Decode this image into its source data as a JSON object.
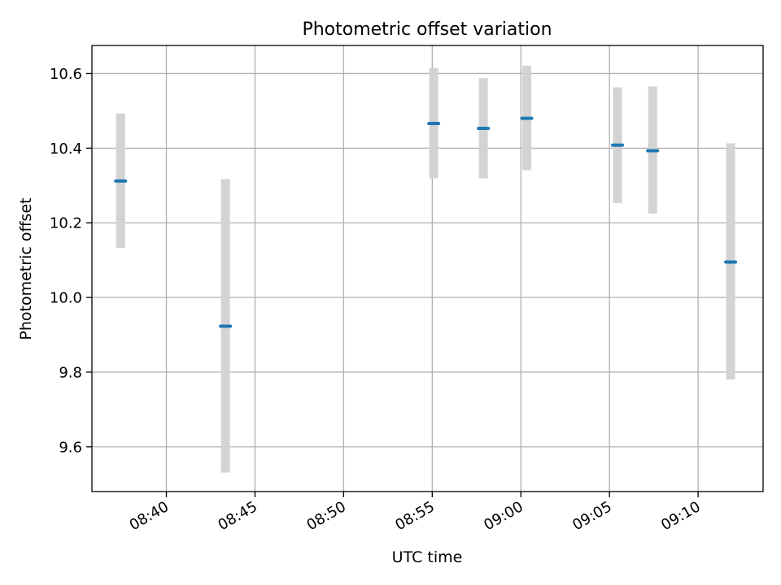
{
  "chart_data": {
    "type": "scatter",
    "title": "Photometric offset variation",
    "xlabel": "UTC time",
    "ylabel": "Photometric offset",
    "x_axis": {
      "type": "time",
      "range": [
        "08:35:48",
        "09:13:40"
      ],
      "ticks": [
        "08:40",
        "08:45",
        "08:50",
        "08:55",
        "09:00",
        "09:05",
        "09:10"
      ]
    },
    "y_axis": {
      "range": [
        9.48,
        10.675
      ],
      "ticks": [
        9.6,
        9.8,
        10.0,
        10.2,
        10.4,
        10.6
      ],
      "tick_labels": [
        "9.6",
        "9.8",
        "10.0",
        "10.2",
        "10.4",
        "10.6"
      ]
    },
    "grid": true,
    "series": [
      {
        "marker_color": "#1f77b4",
        "errorbar_color": "#d3d3d3",
        "points": [
          {
            "x": "08:37:25",
            "y": 10.312,
            "yerr_low": 10.133,
            "yerr_high": 10.493
          },
          {
            "x": "08:43:20",
            "y": 9.923,
            "yerr_low": 9.531,
            "yerr_high": 10.317
          },
          {
            "x": "08:55:05",
            "y": 10.466,
            "yerr_low": 10.319,
            "yerr_high": 10.615
          },
          {
            "x": "08:57:53",
            "y": 10.453,
            "yerr_low": 10.319,
            "yerr_high": 10.587
          },
          {
            "x": "09:00:20",
            "y": 10.48,
            "yerr_low": 10.341,
            "yerr_high": 10.621
          },
          {
            "x": "09:05:27",
            "y": 10.408,
            "yerr_low": 10.253,
            "yerr_high": 10.563
          },
          {
            "x": "09:07:26",
            "y": 10.393,
            "yerr_low": 10.225,
            "yerr_high": 10.565
          },
          {
            "x": "09:11:50",
            "y": 10.095,
            "yerr_low": 9.78,
            "yerr_high": 10.413
          }
        ]
      }
    ]
  }
}
